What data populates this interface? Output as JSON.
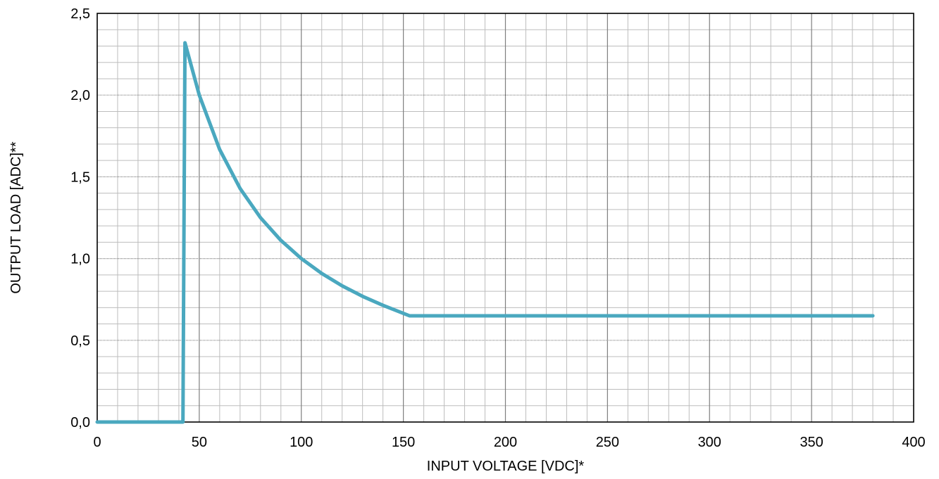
{
  "chart_data": {
    "type": "line",
    "title": "",
    "xlabel": "INPUT VOLTAGE [VDC]*",
    "ylabel": "OUTPUT LOAD [ADC]**",
    "xlim": [
      0,
      400
    ],
    "ylim": [
      0,
      2.5
    ],
    "x_ticks": [
      "0",
      "50",
      "100",
      "150",
      "200",
      "250",
      "300",
      "350",
      "400"
    ],
    "y_ticks": [
      "0,0",
      "0,5",
      "1,0",
      "1,5",
      "2,0",
      "2,5"
    ],
    "grid": true,
    "legend": "none",
    "series": [
      {
        "color": "#4aa8bf",
        "points": [
          [
            0,
            0
          ],
          [
            42,
            0
          ],
          [
            43,
            2.32
          ],
          [
            50,
            2.0
          ],
          [
            60,
            1.667
          ],
          [
            70,
            1.429
          ],
          [
            80,
            1.25
          ],
          [
            90,
            1.111
          ],
          [
            100,
            1.0
          ],
          [
            110,
            0.909
          ],
          [
            120,
            0.833
          ],
          [
            130,
            0.769
          ],
          [
            140,
            0.714
          ],
          [
            153,
            0.65
          ],
          [
            380,
            0.65
          ]
        ]
      }
    ]
  }
}
